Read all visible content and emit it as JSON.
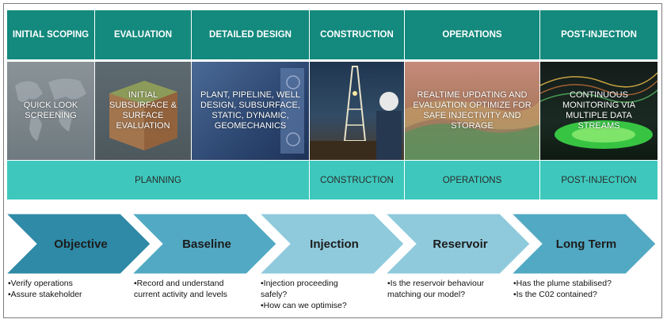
{
  "stages": [
    "INITIAL SCOPING",
    "EVALUATION",
    "DETAILED DESIGN",
    "CONSTRUCTION",
    "OPERATIONS",
    "POST-INJECTION"
  ],
  "stage_images": [
    {
      "text": "QUICK LOOK SCREENING",
      "icon": "world-map-image"
    },
    {
      "text": "INITIAL SUBSURFACE & SURFACE EVALUATION",
      "icon": "geological-block-image"
    },
    {
      "text": "PLANT, PIPELINE, WELL DESIGN, SUBSURFACE, STATIC, DYNAMIC, GEOMECHANICS",
      "icon": "design-screen-image"
    },
    {
      "text": "",
      "icon": "drilling-rig-image"
    },
    {
      "text": "REALTIME UPDATING AND EVALUATION OPTIMIZE FOR SAFE INJECTIVITY AND STORAGE",
      "icon": "reservoir-model-image"
    },
    {
      "text": "CONTINUOUS MONITORING VIA MULTIPLE DATA STREAMS",
      "icon": "monitoring-plume-image"
    }
  ],
  "phases": [
    "PLANNING",
    "CONSTRUCTION",
    "OPERATIONS",
    "POST-INJECTION"
  ],
  "chevrons": [
    {
      "label": "Objective",
      "color": "#2e8aa6"
    },
    {
      "label": "Baseline",
      "color": "#52a9c3"
    },
    {
      "label": "Injection",
      "color": "#8fcadc"
    },
    {
      "label": "Reservoir",
      "color": "#8fcadc"
    },
    {
      "label": "Long Term",
      "color": "#52a9c3"
    }
  ],
  "notes": [
    [
      "•Verify operations",
      "•Assure stakeholder"
    ],
    [
      "•Record and understand",
      "current activity and levels"
    ],
    [
      "•Injection proceeding",
      "safely?",
      "•How can we optimise?"
    ],
    [
      "•Is the reservoir behaviour",
      "matching our model?"
    ],
    [
      "•Has the plume stabilised?",
      "•Is the C02 contained?"
    ]
  ],
  "colors": {
    "header": "#14897d",
    "phase": "#3ec8bd",
    "border": "#7d7d7d"
  }
}
